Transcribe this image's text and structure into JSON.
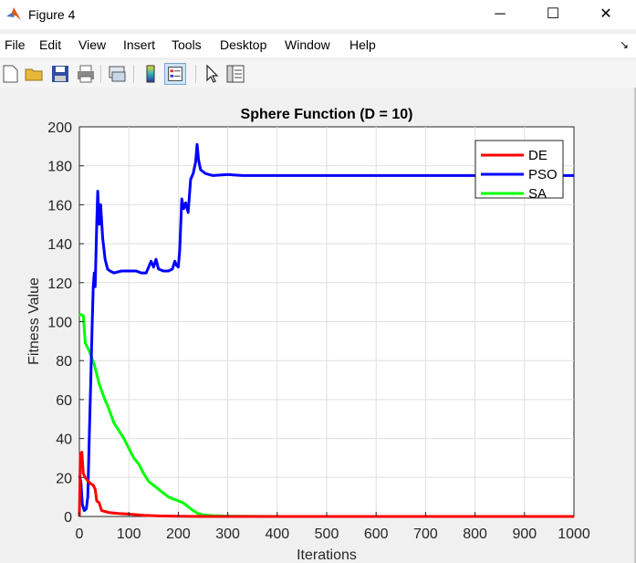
{
  "window": {
    "title": "Figure 4",
    "controls": {
      "minimize": "─",
      "maximize": "☐",
      "close": "✕"
    }
  },
  "menu": {
    "items": [
      "File",
      "Edit",
      "View",
      "Insert",
      "Tools",
      "Desktop",
      "Window",
      "Help"
    ],
    "dock_arrow": "↘"
  },
  "toolbar": {
    "icons": [
      "new-figure-icon",
      "open-file-icon",
      "save-icon",
      "print-icon",
      "link-plot-icon",
      "colorbar-icon",
      "legend-icon",
      "pointer-icon",
      "property-inspector-icon"
    ],
    "active": "legend-icon"
  },
  "chart_data": {
    "type": "line",
    "title": "Sphere Function (D = 10)",
    "xlabel": "Iterations",
    "ylabel": "Fitness Value",
    "xlim": [
      0,
      1000
    ],
    "ylim": [
      0,
      200
    ],
    "xticks": [
      "0",
      "100",
      "200",
      "300",
      "400",
      "500",
      "600",
      "700",
      "800",
      "900",
      "1000"
    ],
    "yticks": [
      "0",
      "20",
      "40",
      "60",
      "80",
      "100",
      "120",
      "140",
      "160",
      "180",
      "200"
    ],
    "grid": true,
    "legend_position": "top-right",
    "series": [
      {
        "name": "DE",
        "color": "#ff0000",
        "points": [
          [
            0,
            0
          ],
          [
            2,
            32
          ],
          [
            5,
            33
          ],
          [
            8,
            22
          ],
          [
            12,
            20
          ],
          [
            18,
            18
          ],
          [
            22,
            17
          ],
          [
            28,
            16
          ],
          [
            32,
            14
          ],
          [
            35,
            8
          ],
          [
            40,
            7
          ],
          [
            45,
            3
          ],
          [
            60,
            2
          ],
          [
            80,
            1.5
          ],
          [
            100,
            1.2
          ],
          [
            130,
            0.6
          ],
          [
            160,
            0.3
          ],
          [
            200,
            0.1
          ],
          [
            250,
            0
          ],
          [
            1000,
            0
          ]
        ]
      },
      {
        "name": "PSO",
        "color": "#0000ff",
        "points": [
          [
            0,
            21
          ],
          [
            3,
            18
          ],
          [
            6,
            6
          ],
          [
            10,
            3
          ],
          [
            14,
            4
          ],
          [
            17,
            10
          ],
          [
            20,
            40
          ],
          [
            23,
            70
          ],
          [
            26,
            100
          ],
          [
            28,
            118
          ],
          [
            30,
            125
          ],
          [
            32,
            118
          ],
          [
            35,
            150
          ],
          [
            37,
            167
          ],
          [
            40,
            150
          ],
          [
            43,
            160
          ],
          [
            47,
            143
          ],
          [
            52,
            132
          ],
          [
            57,
            127
          ],
          [
            62,
            126
          ],
          [
            70,
            125
          ],
          [
            85,
            126
          ],
          [
            100,
            126
          ],
          [
            115,
            126
          ],
          [
            125,
            125
          ],
          [
            135,
            125
          ],
          [
            145,
            131
          ],
          [
            150,
            128
          ],
          [
            155,
            132
          ],
          [
            160,
            127
          ],
          [
            170,
            126
          ],
          [
            180,
            126
          ],
          [
            188,
            127
          ],
          [
            193,
            131
          ],
          [
            196,
            129
          ],
          [
            200,
            128
          ],
          [
            203,
            137
          ],
          [
            207,
            163
          ],
          [
            211,
            158
          ],
          [
            215,
            161
          ],
          [
            220,
            156
          ],
          [
            225,
            173
          ],
          [
            230,
            176
          ],
          [
            235,
            182
          ],
          [
            238,
            191
          ],
          [
            241,
            183
          ],
          [
            245,
            178
          ],
          [
            255,
            176
          ],
          [
            270,
            175
          ],
          [
            300,
            175.5
          ],
          [
            330,
            175
          ],
          [
            360,
            175
          ],
          [
            400,
            175
          ],
          [
            500,
            175
          ],
          [
            700,
            175
          ],
          [
            1000,
            175
          ]
        ]
      },
      {
        "name": "SA",
        "color": "#00ff00",
        "points": [
          [
            0,
            104
          ],
          [
            8,
            103
          ],
          [
            12,
            89
          ],
          [
            20,
            85
          ],
          [
            30,
            78
          ],
          [
            40,
            68
          ],
          [
            50,
            61
          ],
          [
            60,
            55
          ],
          [
            70,
            48
          ],
          [
            80,
            44
          ],
          [
            90,
            40
          ],
          [
            100,
            35
          ],
          [
            110,
            30
          ],
          [
            120,
            27
          ],
          [
            130,
            22
          ],
          [
            140,
            18
          ],
          [
            150,
            16
          ],
          [
            160,
            14
          ],
          [
            170,
            12
          ],
          [
            180,
            10
          ],
          [
            190,
            9
          ],
          [
            200,
            8
          ],
          [
            210,
            7
          ],
          [
            220,
            5
          ],
          [
            230,
            3
          ],
          [
            240,
            1.5
          ],
          [
            250,
            0.8
          ],
          [
            270,
            0.4
          ],
          [
            300,
            0.2
          ],
          [
            400,
            0
          ],
          [
            1000,
            0
          ]
        ]
      }
    ]
  }
}
